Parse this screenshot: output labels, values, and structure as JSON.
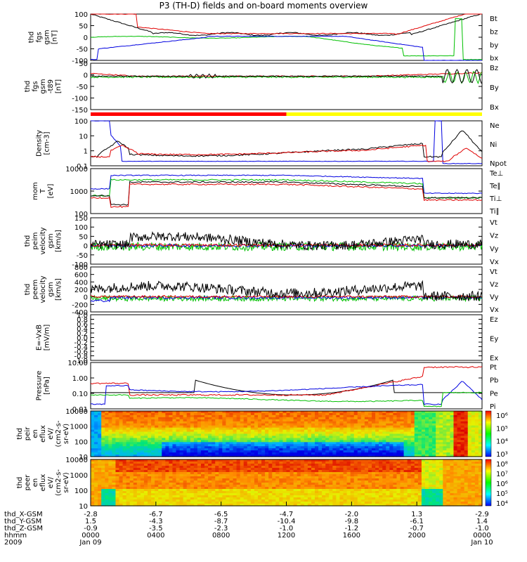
{
  "title": "P3 (TH-D) fields and on-board moments overview",
  "chart_data": {
    "type": "line",
    "x": {
      "unit": "hhmm",
      "range": [
        "0000",
        "0000"
      ],
      "ticks": [
        "0000",
        "0400",
        "0800",
        "1200",
        "1600",
        "2000",
        "0000"
      ],
      "dates": [
        "Jan 09",
        "Jan 10"
      ],
      "year": "2009",
      "ephemeris": [
        {
          "label": "thd_X-GSM",
          "values": [
            "-2.8",
            "-6.7",
            "-6.5",
            "-4.7",
            "-2.0",
            "1.3",
            "-2.9"
          ]
        },
        {
          "label": "thd_Y-GSM",
          "values": [
            "1.5",
            "-4.3",
            "-8.7",
            "-10.4",
            "-9.8",
            "-6.1",
            "1.4"
          ]
        },
        {
          "label": "thd_Z-GSM",
          "values": [
            "-0.9",
            "-3.5",
            "-2.3",
            "-1.0",
            "-1.2",
            "-0.7",
            "-1.0"
          ]
        },
        {
          "label": "hhmm",
          "values": [
            "0000",
            "0400",
            "0800",
            "1200",
            "1600",
            "2000",
            "0000"
          ]
        },
        {
          "label": "2009",
          "values": [
            "Jan 09",
            "",
            "",
            "",
            "",
            "",
            "Jan 10"
          ]
        }
      ]
    },
    "panels": [
      {
        "ylabel": [
          "thd",
          "fgs",
          "gsm",
          "[nT]"
        ],
        "ylim": [
          -100,
          100
        ],
        "yticks": [
          "100",
          "50",
          "0",
          "-50",
          "-100"
        ],
        "legend": [
          {
            "name": "Bt",
            "color": "#000000"
          },
          {
            "name": "bz",
            "color": "#e00000"
          },
          {
            "name": "by",
            "color": "#00c000"
          },
          {
            "name": "bx",
            "color": "#0000e0"
          }
        ]
      },
      {
        "ylabel": [
          "thd",
          "fgs",
          "gsm",
          "-t89",
          "[nT]"
        ],
        "ylim": [
          -150,
          50
        ],
        "yticks": [
          "50",
          "0",
          "-50",
          "-100",
          "-150"
        ],
        "legend": [
          {
            "name": "Bz",
            "color": "#e00000"
          },
          {
            "name": "By",
            "color": "#00c000"
          },
          {
            "name": "Bx",
            "color": "#000000"
          }
        ]
      },
      {
        "ylabel": [
          "Density",
          "[cm-3]"
        ],
        "ylim": [
          0.01,
          100
        ],
        "log": true,
        "yticks": [
          "100",
          "10",
          "1",
          "0.1"
        ],
        "legend": [
          {
            "name": "Ne",
            "color": "#e00000"
          },
          {
            "name": "Ni",
            "color": "#000000"
          },
          {
            "name": "Npot",
            "color": "#0000e0"
          }
        ]
      },
      {
        "ylabel": [
          "mom",
          "T",
          "[eV]"
        ],
        "ylim": [
          10,
          10000
        ],
        "log": true,
        "yticks": [
          "10000",
          "1000",
          "100"
        ],
        "legend": [
          {
            "name": "Te⊥",
            "color": "#e00000"
          },
          {
            "name": "Te∥",
            "color": "#000000"
          },
          {
            "name": "Ti⊥",
            "color": "#0000e0"
          },
          {
            "name": "Ti∥",
            "color": "#00c000"
          }
        ]
      },
      {
        "ylabel": [
          "thd",
          "peim",
          "velocity",
          "gsm",
          "[km/s]"
        ],
        "ylim": [
          -100,
          150
        ],
        "yticks": [
          "150",
          "100",
          "50",
          "0",
          "-50",
          "-100"
        ],
        "legend": [
          {
            "name": "Vt",
            "color": "#000000"
          },
          {
            "name": "Vz",
            "color": "#e00000"
          },
          {
            "name": "Vy",
            "color": "#00c000"
          },
          {
            "name": "Vx",
            "color": "#0000e0"
          }
        ]
      },
      {
        "ylabel": [
          "thd",
          "peem",
          "velocity",
          "gsm",
          "[km/s]"
        ],
        "ylim": [
          -400,
          800
        ],
        "yticks": [
          "800",
          "600",
          "400",
          "200",
          "0",
          "-200",
          "-400"
        ],
        "legend": [
          {
            "name": "Vt",
            "color": "#000000"
          },
          {
            "name": "Vz",
            "color": "#e00000"
          },
          {
            "name": "Vy",
            "color": "#00c000"
          },
          {
            "name": "Vx",
            "color": "#0000e0"
          }
        ]
      },
      {
        "ylabel": [
          "E=-VxB",
          "[mV/m]"
        ],
        "ylim": [
          -1,
          1
        ],
        "yticks": [
          "1.0",
          "0.8",
          "0.6",
          "0.4",
          "0.2",
          "0.0",
          "-0.2",
          "-0.4",
          "-0.6",
          "-0.8",
          "-1.0"
        ],
        "legend": [
          {
            "name": "Ez",
            "color": "#e00000"
          },
          {
            "name": "Ey",
            "color": "#00c000"
          },
          {
            "name": "Ex",
            "color": "#0000e0"
          }
        ]
      },
      {
        "ylabel": [
          "Pressure",
          "[nPa]"
        ],
        "ylim": [
          0.01,
          100
        ],
        "log": true,
        "yticks": [
          "10.00",
          "1.00",
          "0.10",
          "0.01"
        ],
        "legend": [
          {
            "name": "Pt",
            "color": "#000000"
          },
          {
            "name": "Pb",
            "color": "#e00000"
          },
          {
            "name": "Pe",
            "color": "#00c000"
          },
          {
            "name": "Pi",
            "color": "#0000e0"
          }
        ]
      },
      {
        "ylabel": [
          "thd",
          "peir",
          "en",
          "eflux",
          "eV/",
          "(cm2-s-",
          "sr-eV)"
        ],
        "yticks": [
          "10000",
          "1000",
          "100",
          "10"
        ],
        "colorbar": [
          "10⁶",
          "10⁵",
          "10⁴",
          "10³"
        ]
      },
      {
        "ylabel": [
          "thd",
          "peer",
          "en",
          "eflux",
          "eV/",
          "(cm2-s-",
          "sr-eV)"
        ],
        "yticks": [
          "10000",
          "1000",
          "100",
          "10"
        ],
        "colorbar": [
          "10⁸",
          "10⁷",
          "10⁶",
          "10⁵",
          "10⁴"
        ]
      }
    ],
    "mode_bar": {
      "segments": [
        {
          "from": 0,
          "to": 0.5,
          "color": "#ff0000"
        },
        {
          "from": 0.5,
          "to": 1,
          "color": "#ffff00"
        }
      ]
    }
  }
}
